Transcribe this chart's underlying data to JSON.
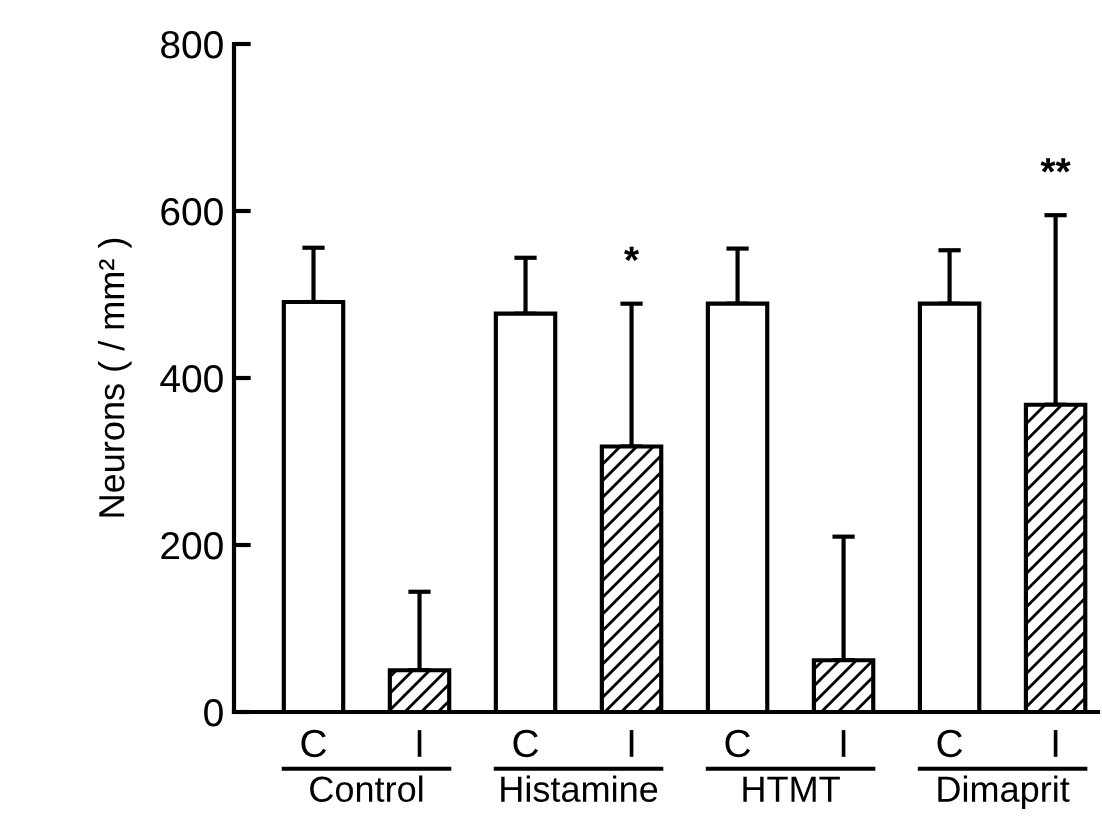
{
  "chart_data": {
    "type": "bar",
    "ylabel": "Neurons ( / mm² )",
    "categories": [
      "C",
      "I",
      "C",
      "I",
      "C",
      "I",
      "C",
      "I"
    ],
    "series": [
      {
        "color": "#ffffff",
        "values": [
          491,
          null,
          477,
          null,
          489,
          null,
          489,
          null
        ],
        "errors": [
          [
            491,
            556
          ],
          null,
          [
            477,
            544
          ],
          null,
          [
            489,
            555
          ],
          null,
          [
            489,
            553
          ],
          null
        ]
      },
      {
        "color": "#000000",
        "values": [
          null,
          50,
          null,
          318,
          null,
          62,
          null,
          368
        ],
        "errors": [
          null,
          [
            50,
            144
          ],
          null,
          [
            318,
            489
          ],
          null,
          [
            62,
            210
          ],
          null,
          [
            368,
            595
          ]
        ]
      }
    ],
    "ylim": [
      0,
      800
    ],
    "yticks": [
      0,
      200,
      400,
      600,
      800
    ],
    "grid": false,
    "legend": false,
    "annotations": [
      "*",
      "**",
      "Control",
      "Histamine",
      "HTMT",
      "Dimaprit"
    ]
  }
}
